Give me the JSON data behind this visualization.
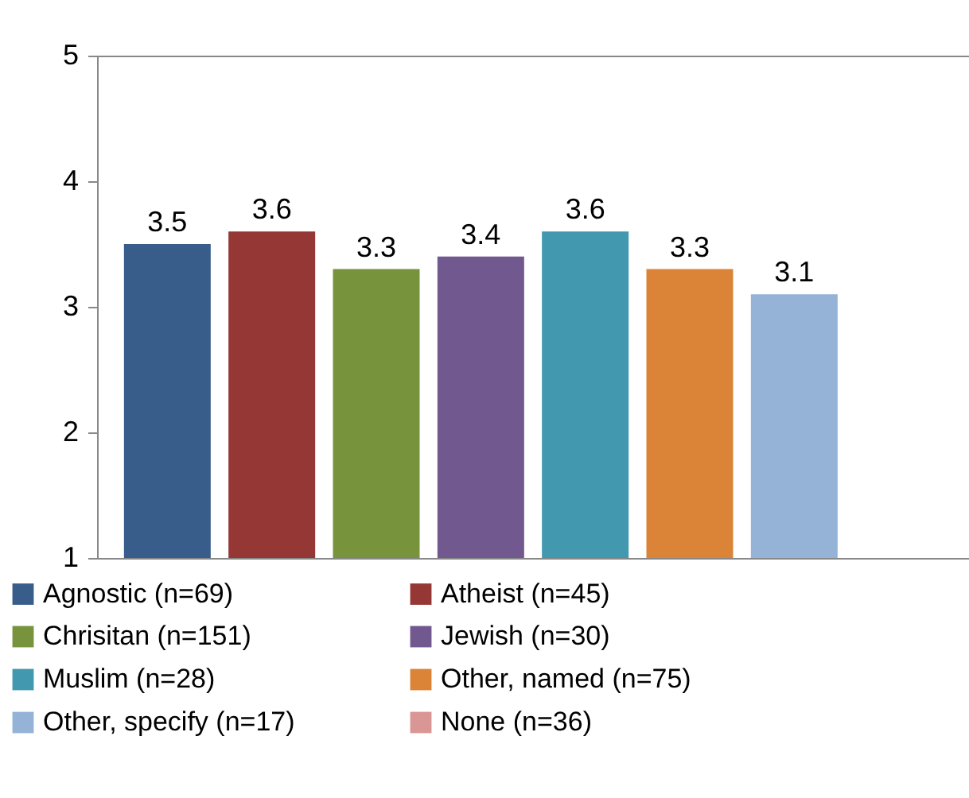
{
  "chart_data": {
    "type": "bar",
    "categories": [
      null
    ],
    "series": [
      {
        "name": "Agnostic (n=69)",
        "color": "#385d8a",
        "values": [
          3.5
        ]
      },
      {
        "name": "Atheist (n=45)",
        "color": "#953735",
        "values": [
          3.6
        ]
      },
      {
        "name": "Chrisitan (n=151)",
        "color": "#77933c",
        "values": [
          3.3
        ]
      },
      {
        "name": "Jewish (n=30)",
        "color": "#71588f",
        "values": [
          3.4
        ]
      },
      {
        "name": "Muslim (n=28)",
        "color": "#4198af",
        "values": [
          3.6
        ]
      },
      {
        "name": "Other, named (n=75)",
        "color": "#db8437",
        "values": [
          3.3
        ]
      },
      {
        "name": "Other, specify (n=17)",
        "color": "#95b3d7",
        "values": [
          3.1
        ]
      },
      {
        "name": "None (n=36)",
        "color": "#d99694",
        "values": [
          null
        ]
      }
    ],
    "ylim": [
      1,
      5
    ],
    "yticks": [
      1,
      2,
      3,
      4,
      5
    ],
    "tick_labels": "y",
    "data_labels": true,
    "legend": "bottom"
  }
}
